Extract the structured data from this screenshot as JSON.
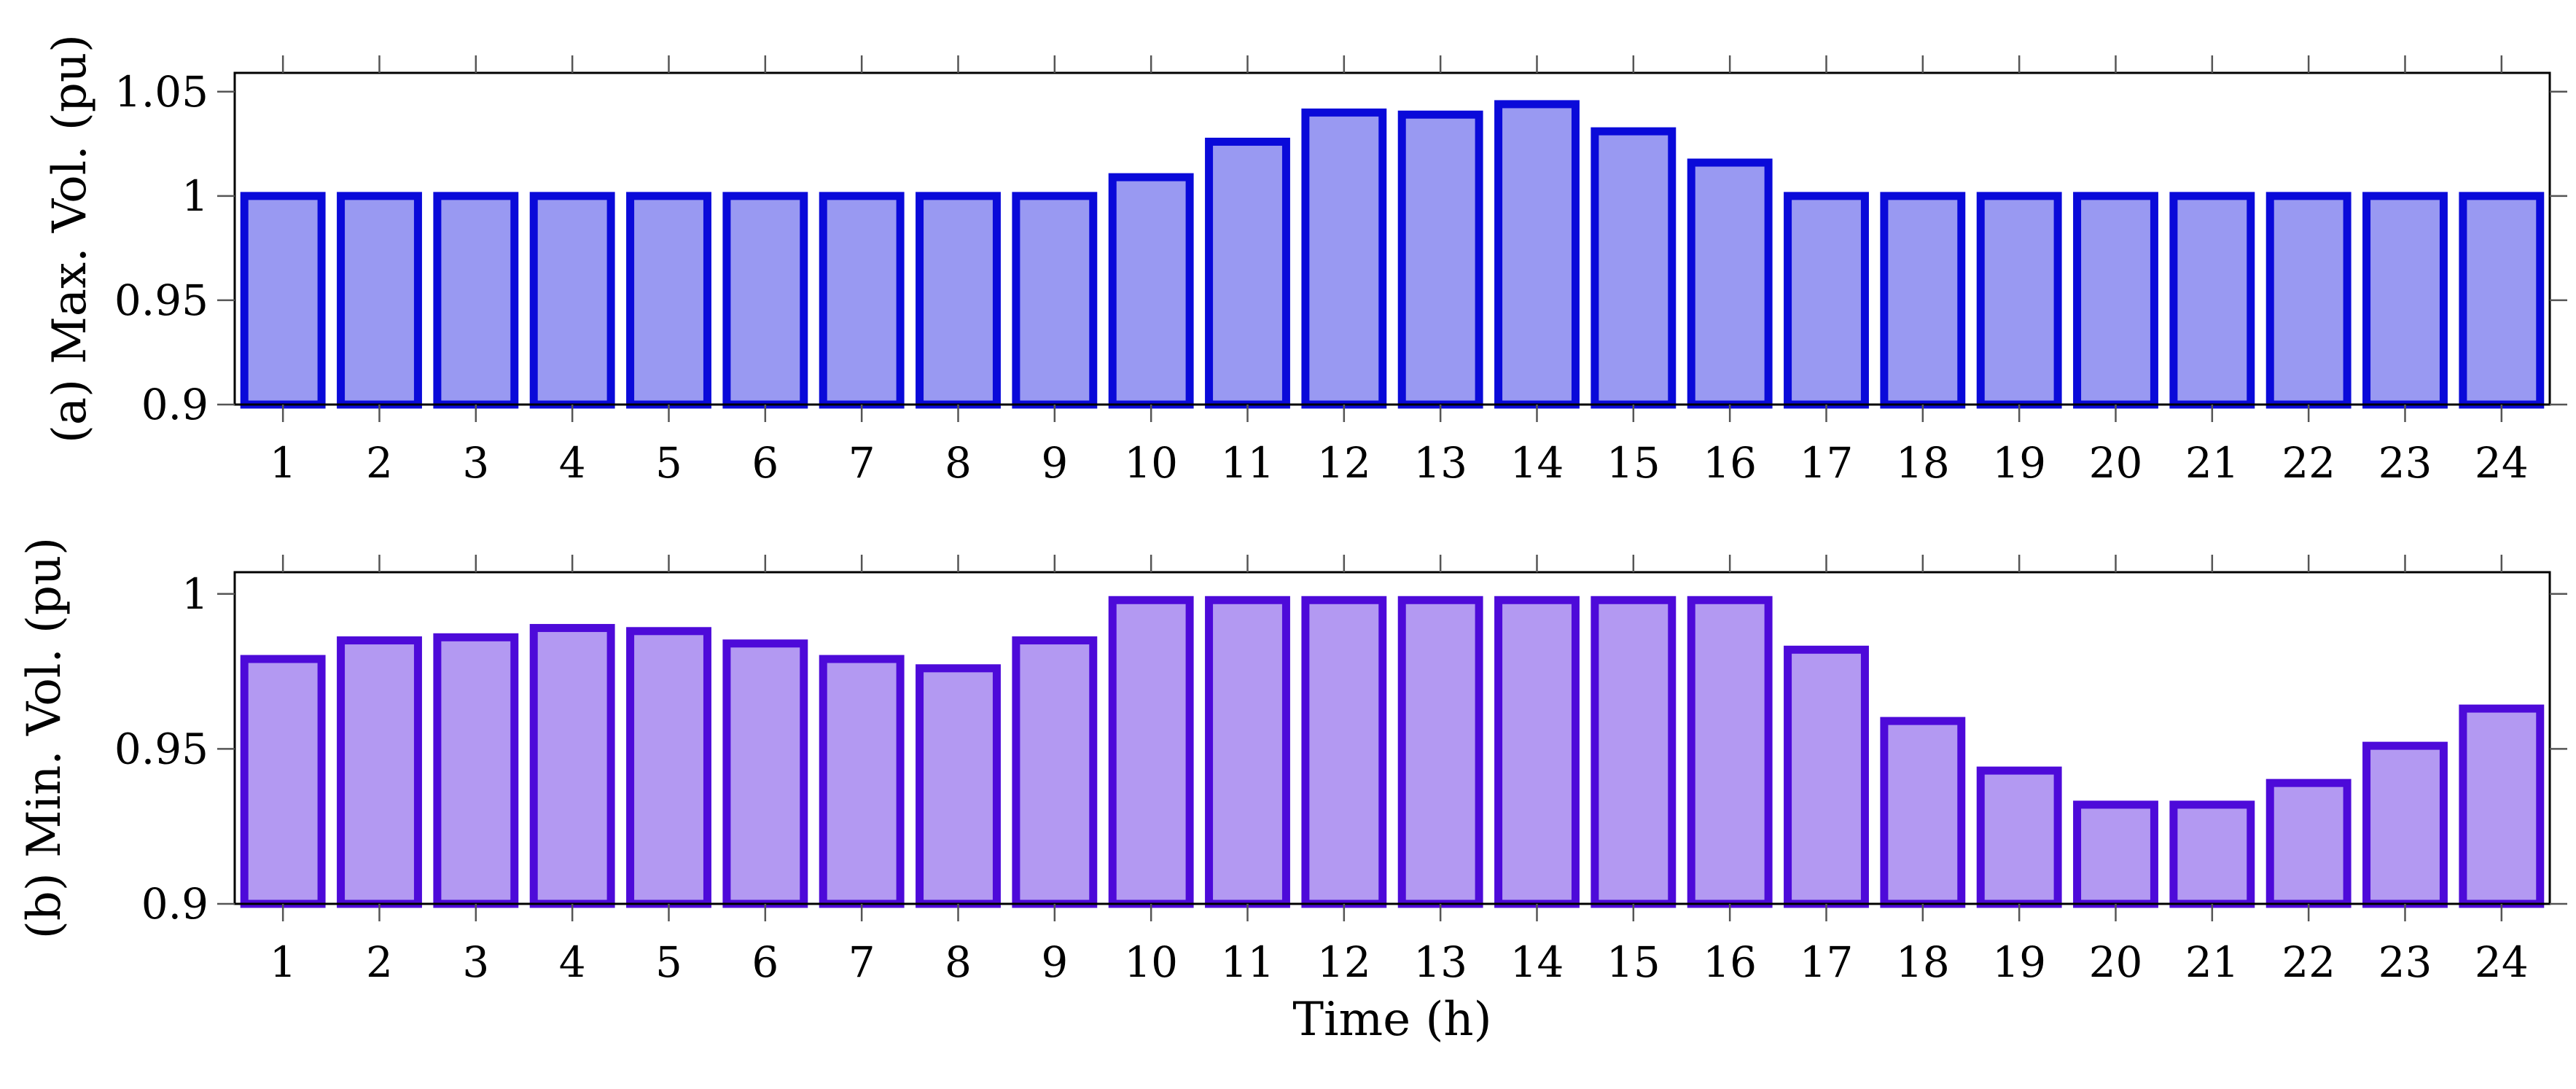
{
  "chart_data": [
    {
      "type": "bar",
      "panel": "a",
      "title": "",
      "xlabel": "",
      "ylabel": "(a) Max. Vol. (pu)",
      "categories": [
        "1",
        "2",
        "3",
        "4",
        "5",
        "6",
        "7",
        "8",
        "9",
        "10",
        "11",
        "12",
        "13",
        "14",
        "15",
        "16",
        "17",
        "18",
        "19",
        "20",
        "21",
        "22",
        "23",
        "24"
      ],
      "values": [
        1.0,
        1.0,
        1.0,
        1.0,
        1.0,
        1.0,
        1.0,
        1.0,
        1.0,
        1.009,
        1.026,
        1.04,
        1.039,
        1.044,
        1.031,
        1.016,
        1.0,
        1.0,
        1.0,
        1.0,
        1.0,
        1.0,
        1.0,
        1.0
      ],
      "ylim": [
        0.9,
        1.059
      ],
      "yticks": [
        0.9,
        0.95,
        1.0,
        1.05
      ],
      "ytick_labels": [
        "0.9",
        "0.95",
        "1",
        "1.05"
      ],
      "grid": false,
      "bar_fill": "#9999f2",
      "bar_stroke": "#0a0ad9"
    },
    {
      "type": "bar",
      "panel": "b",
      "title": "",
      "xlabel": "Time (h)",
      "ylabel": "(b) Min. Vol. (pu)",
      "categories": [
        "1",
        "2",
        "3",
        "4",
        "5",
        "6",
        "7",
        "8",
        "9",
        "10",
        "11",
        "12",
        "13",
        "14",
        "15",
        "16",
        "17",
        "18",
        "19",
        "20",
        "21",
        "22",
        "23",
        "24"
      ],
      "values": [
        0.979,
        0.985,
        0.986,
        0.989,
        0.988,
        0.984,
        0.979,
        0.976,
        0.985,
        0.998,
        0.998,
        0.998,
        0.998,
        0.998,
        0.998,
        0.998,
        0.982,
        0.959,
        0.943,
        0.932,
        0.932,
        0.939,
        0.951,
        0.963
      ],
      "ylim": [
        0.9,
        1.007
      ],
      "yticks": [
        0.9,
        0.95,
        1.0
      ],
      "ytick_labels": [
        "0.9",
        "0.95",
        "1"
      ],
      "grid": false,
      "bar_fill": "#b399f2",
      "bar_stroke": "#4d0ad9"
    }
  ]
}
